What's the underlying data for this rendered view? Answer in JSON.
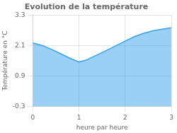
{
  "chart_data": {
    "type": "area",
    "title": "Evolution de la température",
    "xlabel": "heure par heure",
    "ylabel": "Température en °C",
    "x": [
      0,
      0.2,
      0.4,
      0.6,
      0.8,
      1.0,
      1.15,
      1.3,
      1.5,
      1.7,
      1.9,
      2.0,
      2.2,
      2.4,
      2.6,
      2.8,
      3.0
    ],
    "values": [
      2.2,
      2.1,
      1.95,
      1.78,
      1.6,
      1.45,
      1.52,
      1.65,
      1.82,
      2.0,
      2.18,
      2.27,
      2.45,
      2.58,
      2.68,
      2.74,
      2.8
    ],
    "xlim": [
      0,
      3
    ],
    "ylim": [
      -0.3,
      3.3
    ],
    "xticks": [
      0,
      1,
      2,
      3
    ],
    "yticks": [
      -0.3,
      0.9,
      2.1,
      3.3
    ],
    "grid": true
  }
}
